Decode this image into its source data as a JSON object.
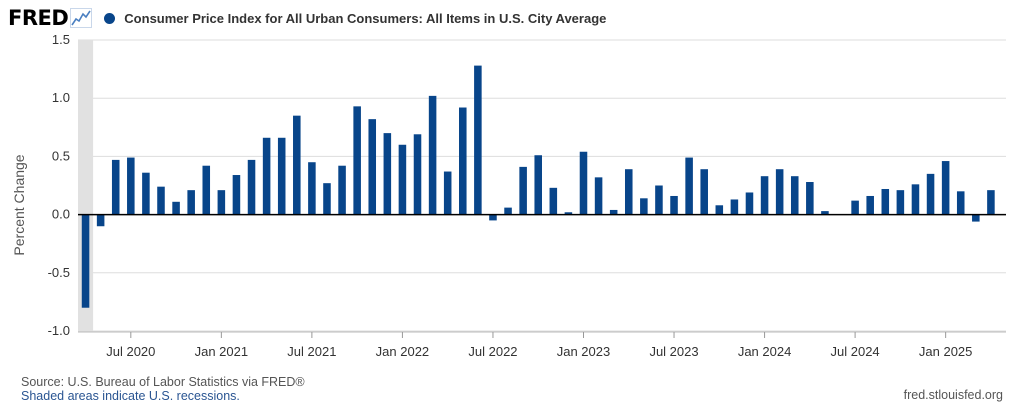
{
  "header": {
    "logo_text": "FRED",
    "title": "Consumer Price Index for All Urban Consumers: All Items in U.S. City Average"
  },
  "colors": {
    "series": "#08458a",
    "grid": "#dddddd",
    "zero_line": "#000000"
  },
  "footer": {
    "source": "Source: U.S. Bureau of Labor Statistics via FRED®",
    "recessions": "Shaded areas indicate U.S. recessions.",
    "site": "fred.stlouisfed.org"
  },
  "chart_data": {
    "type": "bar",
    "title": "Consumer Price Index for All Urban Consumers: All Items in U.S. City Average",
    "ylabel": "Percent Change",
    "xlabel": "",
    "ylim": [
      -1.0,
      1.5
    ],
    "yticks": [
      1.5,
      1.0,
      0.5,
      0.0,
      -0.5,
      -1.0
    ],
    "ytick_labels": [
      "1.5",
      "1.0",
      "0.5",
      "0.0",
      "-0.5",
      "-1.0"
    ],
    "xtick_labels": [
      "Jul 2020",
      "Jan 2021",
      "Jul 2021",
      "Jan 2022",
      "Jul 2022",
      "Jan 2023",
      "Jul 2023",
      "Jan 2024",
      "Jul 2024",
      "Jan 2025"
    ],
    "xtick_dates": [
      "2020-07",
      "2021-01",
      "2021-07",
      "2022-01",
      "2022-07",
      "2023-01",
      "2023-07",
      "2024-01",
      "2024-07",
      "2025-01"
    ],
    "grid": true,
    "recession": {
      "start": "2020-03",
      "end": "2020-04"
    },
    "series": [
      {
        "name": "Consumer Price Index for All Urban Consumers: All Items in U.S. City Average",
        "x": [
          "2020-04",
          "2020-05",
          "2020-06",
          "2020-07",
          "2020-08",
          "2020-09",
          "2020-10",
          "2020-11",
          "2020-12",
          "2021-01",
          "2021-02",
          "2021-03",
          "2021-04",
          "2021-05",
          "2021-06",
          "2021-07",
          "2021-08",
          "2021-09",
          "2021-10",
          "2021-11",
          "2021-12",
          "2022-01",
          "2022-02",
          "2022-03",
          "2022-04",
          "2022-05",
          "2022-06",
          "2022-07",
          "2022-08",
          "2022-09",
          "2022-10",
          "2022-11",
          "2022-12",
          "2023-01",
          "2023-02",
          "2023-03",
          "2023-04",
          "2023-05",
          "2023-06",
          "2023-07",
          "2023-08",
          "2023-09",
          "2023-10",
          "2023-11",
          "2023-12",
          "2024-01",
          "2024-02",
          "2024-03",
          "2024-04",
          "2024-05",
          "2024-06",
          "2024-07",
          "2024-08",
          "2024-09",
          "2024-10",
          "2024-11",
          "2024-12",
          "2025-01",
          "2025-02",
          "2025-03",
          "2025-04"
        ],
        "values": [
          -0.8,
          -0.1,
          0.47,
          0.49,
          0.36,
          0.24,
          0.11,
          0.21,
          0.42,
          0.21,
          0.34,
          0.47,
          0.66,
          0.66,
          0.85,
          0.45,
          0.27,
          0.42,
          0.93,
          0.82,
          0.7,
          0.6,
          0.69,
          1.02,
          0.37,
          0.92,
          1.28,
          -0.05,
          0.06,
          0.41,
          0.51,
          0.23,
          0.02,
          0.54,
          0.32,
          0.04,
          0.39,
          0.14,
          0.25,
          0.16,
          0.49,
          0.39,
          0.08,
          0.13,
          0.19,
          0.33,
          0.39,
          0.33,
          0.28,
          0.03,
          0.0,
          0.12,
          0.16,
          0.22,
          0.21,
          0.26,
          0.35,
          0.46,
          0.2,
          -0.06,
          0.21
        ]
      }
    ]
  }
}
